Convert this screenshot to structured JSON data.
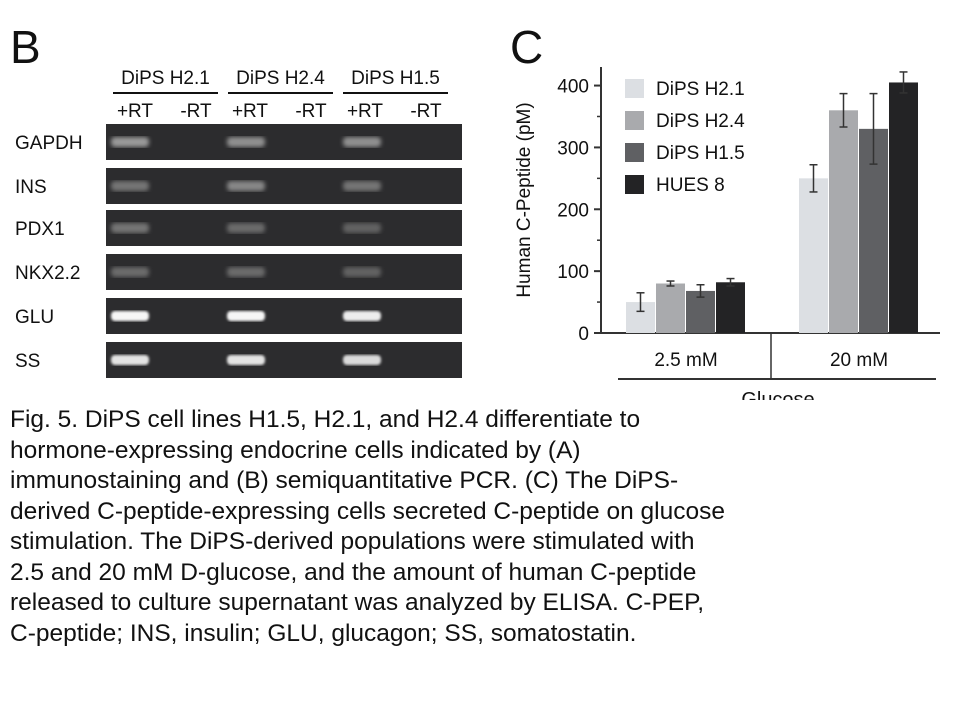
{
  "panel_b": {
    "letter": "B",
    "groups": [
      {
        "name": "DiPS H2.1",
        "lanes": [
          "+RT",
          "-RT"
        ]
      },
      {
        "name": "DiPS H2.4",
        "lanes": [
          "+RT",
          "-RT"
        ]
      },
      {
        "name": "DiPS H1.5",
        "lanes": [
          "+RT",
          "-RT"
        ]
      }
    ],
    "rows": [
      {
        "label": "GAPDH",
        "intensity": [
          0.45,
          0,
          0.4,
          0,
          0.4,
          0
        ]
      },
      {
        "label": "INS",
        "intensity": [
          0.25,
          0,
          0.35,
          0,
          0.25,
          0
        ]
      },
      {
        "label": "PDX1",
        "intensity": [
          0.25,
          0,
          0.2,
          0,
          0.15,
          0
        ]
      },
      {
        "label": "NKX2.2",
        "intensity": [
          0.2,
          0,
          0.2,
          0,
          0.15,
          0
        ]
      },
      {
        "label": "GLU",
        "intensity": [
          0.95,
          0,
          0.95,
          0,
          0.9,
          0
        ]
      },
      {
        "label": "SS",
        "intensity": [
          0.85,
          0,
          0.85,
          0,
          0.8,
          0
        ]
      }
    ]
  },
  "panel_c": {
    "letter": "C"
  },
  "chart_data": {
    "type": "bar",
    "title": "",
    "xlabel": "Glucose",
    "ylabel": "Human C-Peptide (pM)",
    "ylim": [
      0,
      430
    ],
    "yticks": [
      0,
      100,
      200,
      300,
      400
    ],
    "categories": [
      "2.5 mM",
      "20 mM"
    ],
    "series": [
      {
        "name": "DiPS H2.1",
        "color": "#dcdfe3",
        "values": [
          50,
          250
        ],
        "errors": [
          15,
          22
        ]
      },
      {
        "name": "DiPS H2.4",
        "color": "#a9aaad",
        "values": [
          80,
          360
        ],
        "errors": [
          4,
          27
        ]
      },
      {
        "name": "DiPS H1.5",
        "color": "#5f6063",
        "values": [
          68,
          330
        ],
        "errors": [
          10,
          57
        ]
      },
      {
        "name": "HUES 8",
        "color": "#232325",
        "values": [
          82,
          405
        ],
        "errors": [
          6,
          17
        ]
      }
    ],
    "legend": "top-left",
    "grid": false
  },
  "caption": [
    "Fig. 5. DiPS cell lines H1.5, H2.1, and H2.4 differentiate to",
    "hormone-expressing endocrine cells indicated by (A)",
    "immunostaining and (B) semiquantitative PCR. (C) The DiPS-",
    "derived C-peptide-expressing cells secreted C-peptide on glucose",
    "stimulation. The DiPS-derived populations were stimulated with",
    "2.5 and 20 mM D-glucose, and the amount of human C-peptide",
    "released to culture supernatant was analyzed by ELISA. C-PEP,",
    "C-peptide; INS, insulin; GLU, glucagon; SS, somatostatin."
  ]
}
